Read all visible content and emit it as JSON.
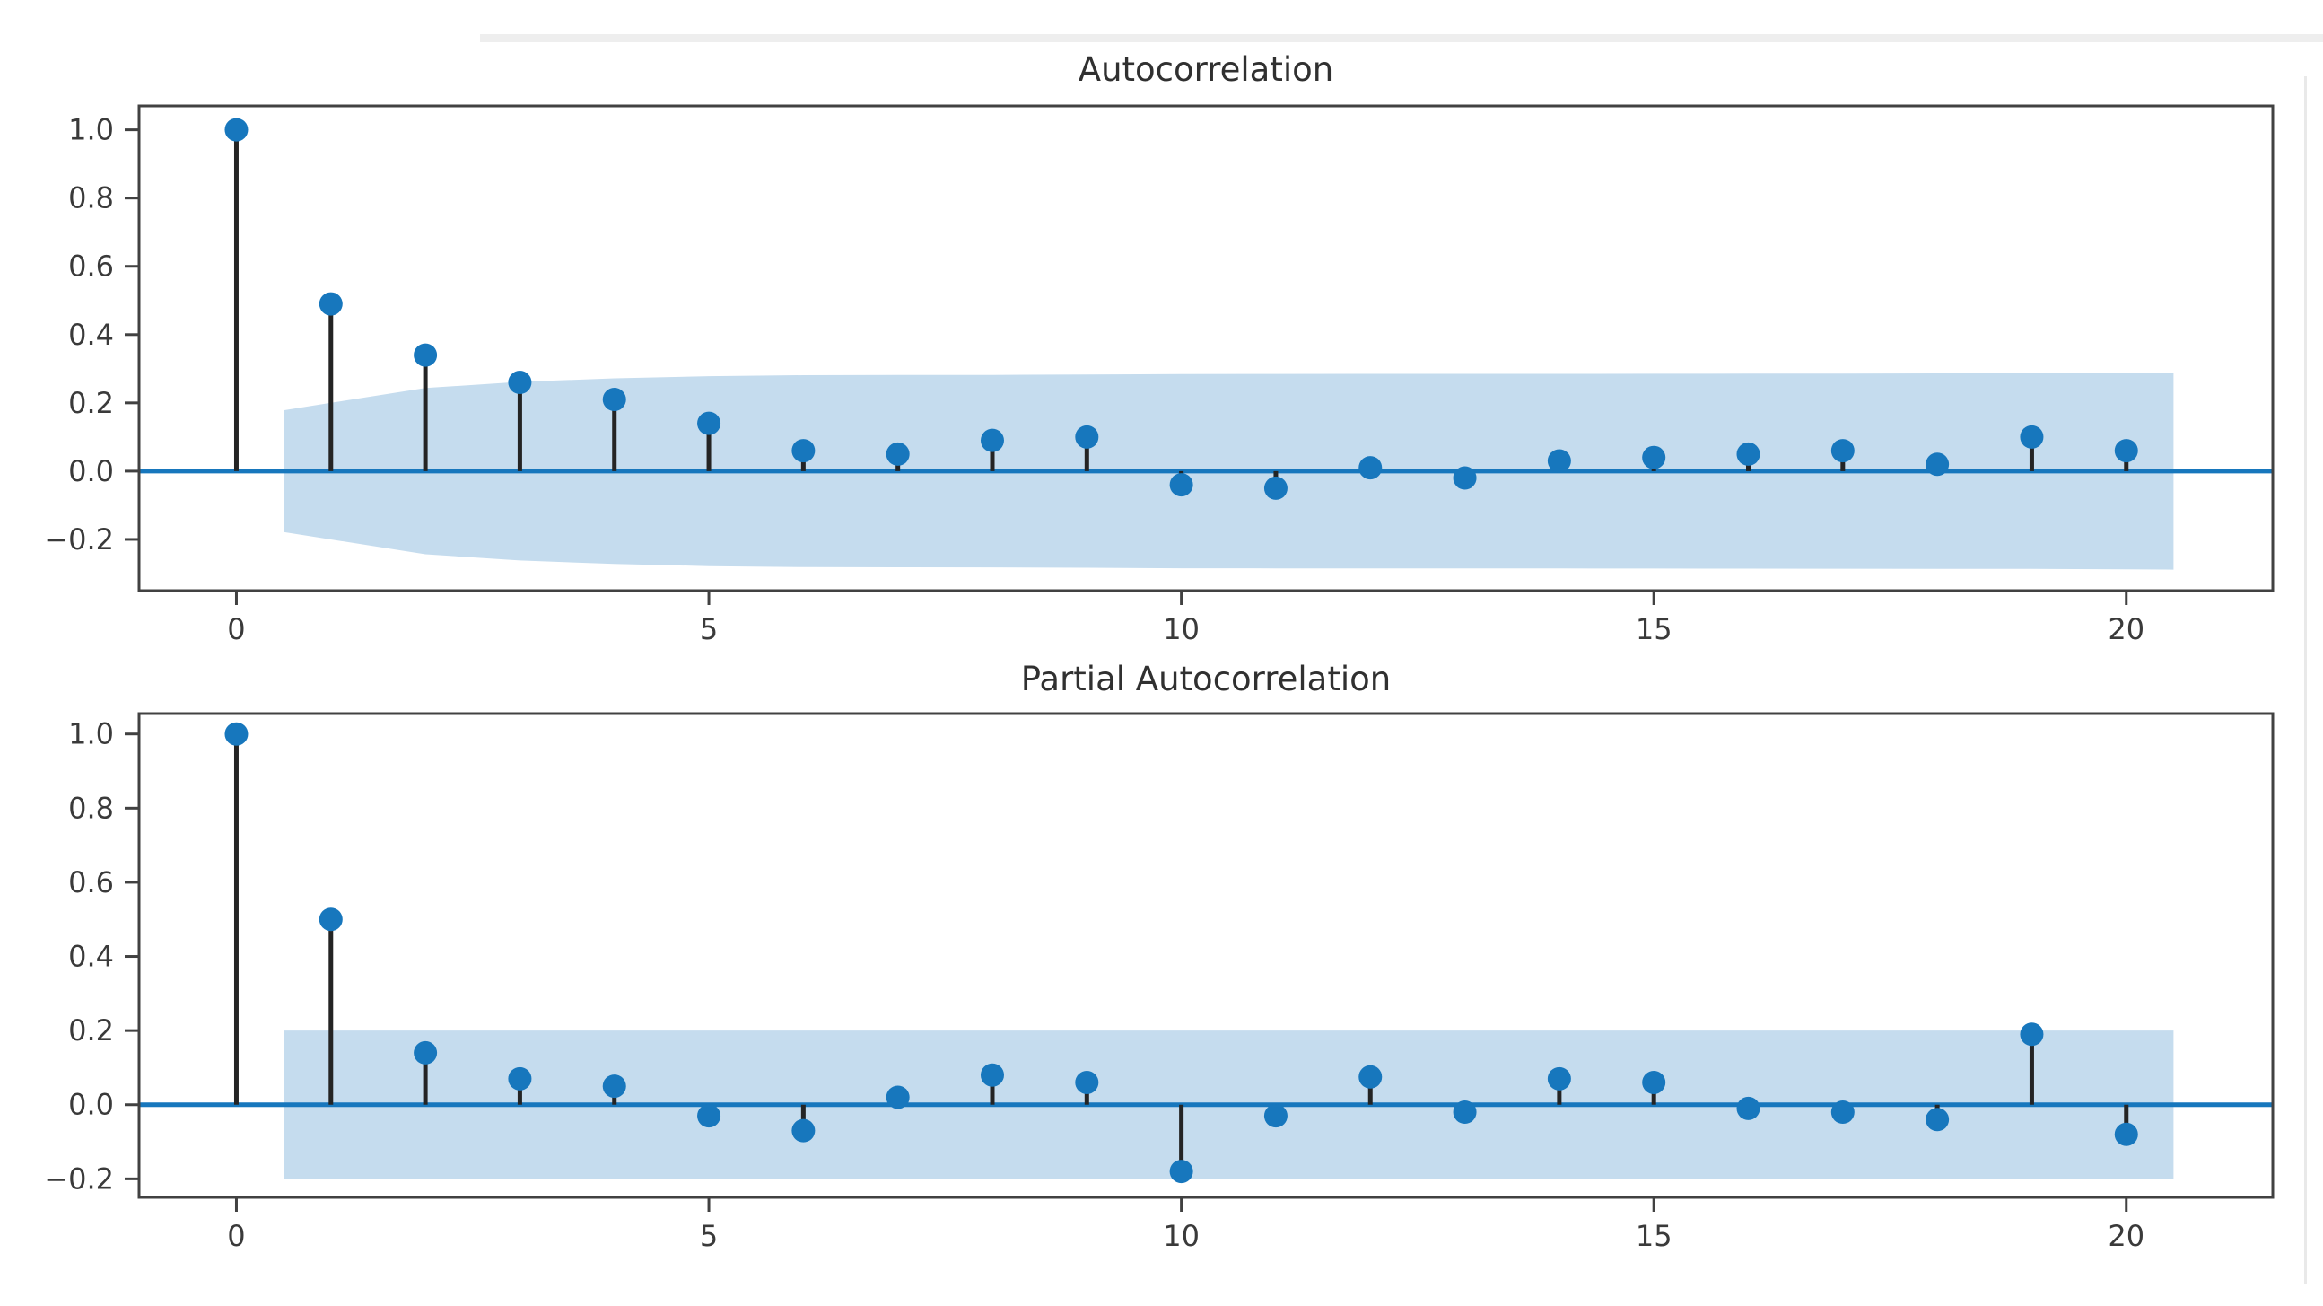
{
  "figure": {
    "background": "#ffffff",
    "decorations": {
      "top_strip_color": "#eeeeee",
      "right_edge_line_color": "#e9e9e9"
    }
  },
  "style": {
    "marker_color": "#1777bd",
    "stem_color": "#242424",
    "zero_line_color": "#1777bd",
    "band_color": "#c5dcee",
    "frame_color": "#414141",
    "tick_label_color": "#3a3a3a",
    "title_color": "#303030"
  },
  "chart_data": [
    {
      "type": "stem",
      "title": "Autocorrelation",
      "xlabel": "",
      "ylabel": "",
      "x": [
        0,
        1,
        2,
        3,
        4,
        5,
        6,
        7,
        8,
        9,
        10,
        11,
        12,
        13,
        14,
        15,
        16,
        17,
        18,
        19,
        20
      ],
      "values": [
        1.0,
        0.49,
        0.34,
        0.26,
        0.21,
        0.14,
        0.06,
        0.05,
        0.09,
        0.1,
        -0.04,
        -0.05,
        0.01,
        -0.02,
        0.03,
        0.04,
        0.05,
        0.06,
        0.02,
        0.1,
        0.06
      ],
      "xlim": [
        -1.03,
        21.55
      ],
      "ylim": [
        -0.35,
        1.07
      ],
      "xticks": {
        "values": [
          0,
          5,
          10,
          15,
          20
        ],
        "labels": [
          "0",
          "5",
          "10",
          "15",
          "20"
        ]
      },
      "yticks": {
        "values": [
          1.0,
          0.8,
          0.6,
          0.4,
          0.2,
          0.0,
          -0.2
        ],
        "labels": [
          "1.0",
          "0.8",
          "0.6",
          "0.4",
          "0.2",
          "0.0",
          "−0.2"
        ]
      },
      "confidence_band": {
        "method": "bartlett",
        "n_obs": 96,
        "z": 1.96,
        "x_start": 0.5,
        "x_end": 20.5
      },
      "grid": false,
      "legend": null
    },
    {
      "type": "stem",
      "title": "Partial Autocorrelation",
      "xlabel": "",
      "ylabel": "",
      "x": [
        0,
        1,
        2,
        3,
        4,
        5,
        6,
        7,
        8,
        9,
        10,
        11,
        12,
        13,
        14,
        15,
        16,
        17,
        18,
        19,
        20
      ],
      "values": [
        1.0,
        0.5,
        0.14,
        0.07,
        0.05,
        -0.03,
        -0.07,
        0.02,
        0.08,
        0.06,
        -0.18,
        -0.03,
        0.075,
        -0.02,
        0.07,
        0.06,
        -0.01,
        -0.02,
        -0.04,
        0.19,
        -0.08
      ],
      "xlim": [
        -1.03,
        21.55
      ],
      "ylim": [
        -0.25,
        1.055
      ],
      "xticks": {
        "values": [
          0,
          5,
          10,
          15,
          20
        ],
        "labels": [
          "0",
          "5",
          "10",
          "15",
          "20"
        ]
      },
      "yticks": {
        "values": [
          1.0,
          0.8,
          0.6,
          0.4,
          0.2,
          0.0,
          -0.2
        ],
        "labels": [
          "1.0",
          "0.8",
          "0.6",
          "0.4",
          "0.2",
          "0.0",
          "−0.2"
        ]
      },
      "confidence_band": {
        "method": "constant",
        "level": 0.2,
        "x_start": 0.5,
        "x_end": 20.5
      },
      "grid": false,
      "legend": null
    }
  ]
}
